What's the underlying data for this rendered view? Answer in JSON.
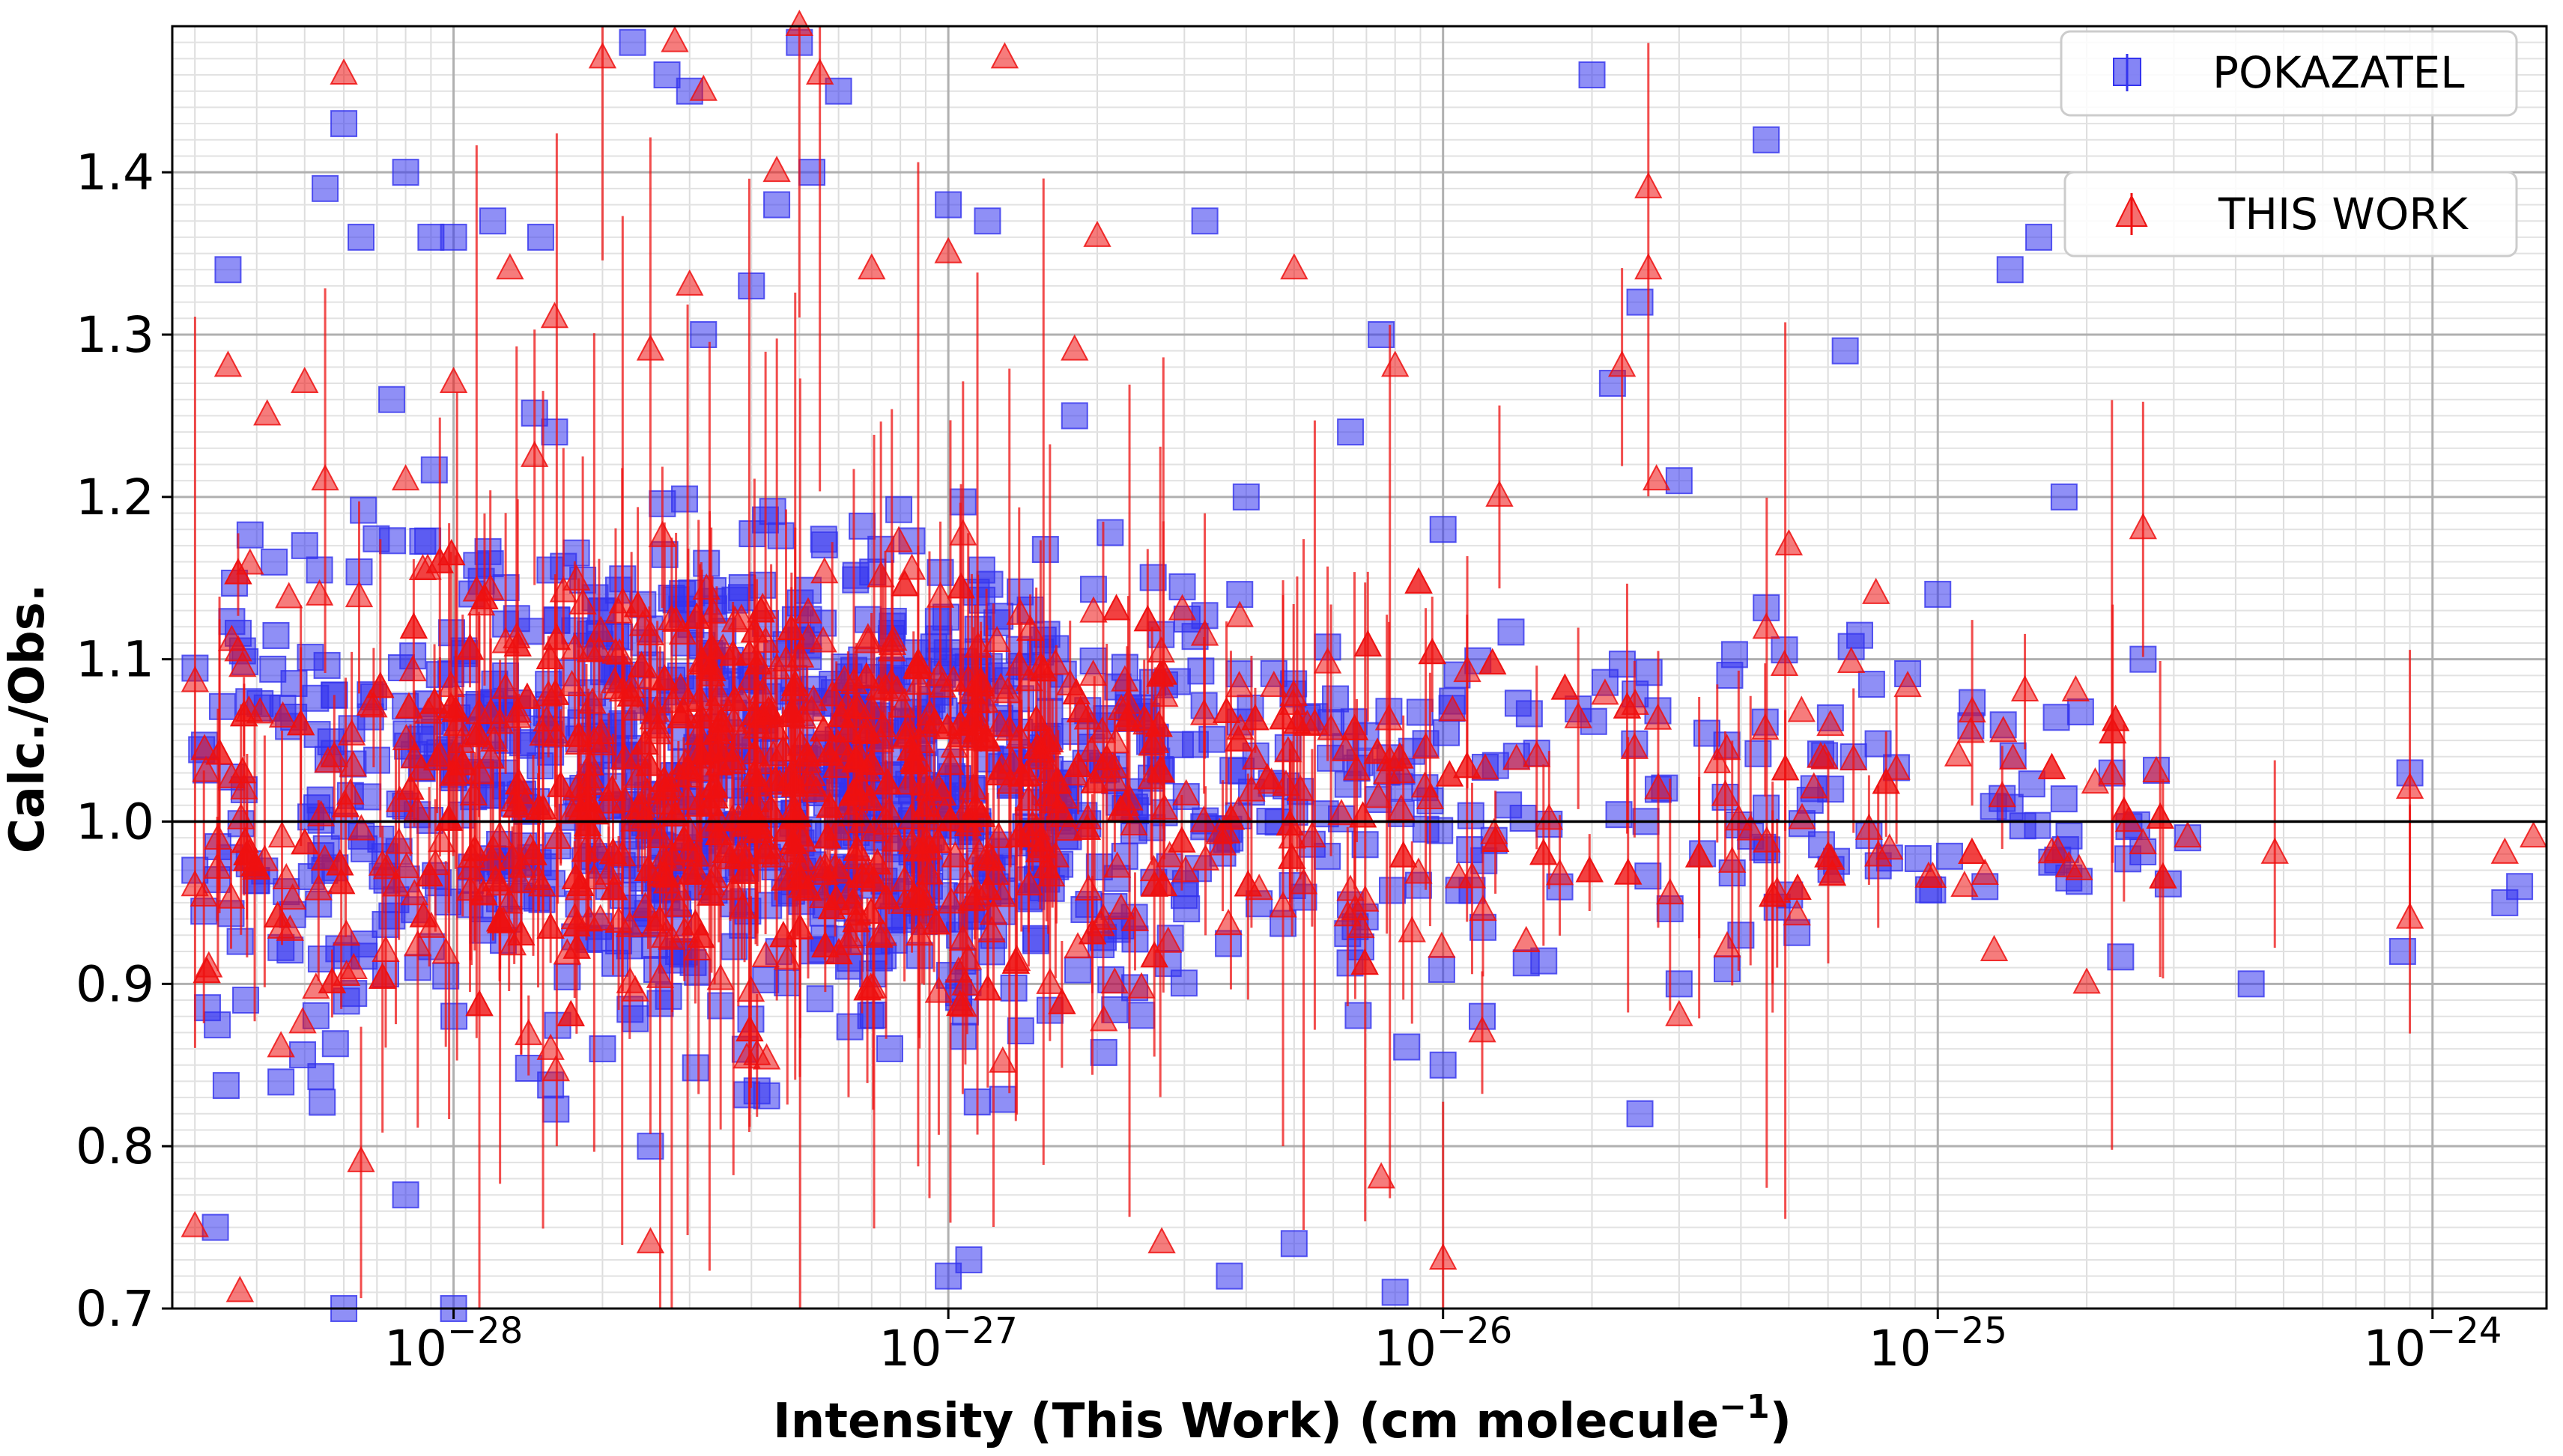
{
  "chart_data": {
    "type": "scatter",
    "title": "",
    "xlabel": "Intensity (This Work) (cm molecule",
    "xlabel_superscript": "−1",
    "xlabel_close": ")",
    "ylabel": "Calc./Obs.",
    "xscale": "log",
    "xlim": [
      2.7e-29,
      1.7e-24
    ],
    "ylim": [
      0.7,
      1.49
    ],
    "grid": true,
    "reference_line_y": 1.0,
    "y_ticks": [
      {
        "value": 0.7,
        "label": "0.7"
      },
      {
        "value": 0.8,
        "label": "0.8"
      },
      {
        "value": 0.9,
        "label": "0.9"
      },
      {
        "value": 1.0,
        "label": "1.0"
      },
      {
        "value": 1.1,
        "label": "1.1"
      },
      {
        "value": 1.2,
        "label": "1.2"
      },
      {
        "value": 1.3,
        "label": "1.3"
      },
      {
        "value": 1.4,
        "label": "1.4"
      }
    ],
    "x_ticks": [
      {
        "exponent": -28,
        "base": "10",
        "exp_label": "−28"
      },
      {
        "exponent": -27,
        "base": "10",
        "exp_label": "−27"
      },
      {
        "exponent": -26,
        "base": "10",
        "exp_label": "−26"
      },
      {
        "exponent": -25,
        "base": "10",
        "exp_label": "−25"
      },
      {
        "exponent": -24,
        "base": "10",
        "exp_label": "−24"
      }
    ],
    "legend": {
      "placement": "top-right",
      "entries": [
        {
          "name": "POKAZATEL",
          "marker": "square",
          "color": "#3333ee"
        },
        {
          "name": "THIS WORK",
          "marker": "triangle",
          "color": "#ee1111"
        }
      ]
    },
    "series": [
      {
        "name": "POKAZATEL",
        "marker": "square",
        "color": "#3333ee",
        "approx_points": 1200,
        "points": [
          [
            3e-29,
            0.97
          ],
          [
            3.3e-29,
            0.75
          ],
          [
            3.5e-29,
            1.34
          ],
          [
            3.8e-29,
            0.89
          ],
          [
            4.2e-29,
            1.07
          ],
          [
            5e-29,
            1.17
          ],
          [
            5.5e-29,
            1.39
          ],
          [
            6e-29,
            1.43
          ],
          [
            6.5e-29,
            1.36
          ],
          [
            7.5e-29,
            1.26
          ],
          [
            8e-29,
            1.4
          ],
          [
            9e-29,
            1.36
          ],
          [
            1e-28,
            1.36
          ],
          [
            1.2e-28,
            1.37
          ],
          [
            1.5e-28,
            1.36
          ],
          [
            1.6e-28,
            1.24
          ],
          [
            2.3e-28,
            1.48
          ],
          [
            2.7e-28,
            1.46
          ],
          [
            3e-28,
            1.45
          ],
          [
            3.2e-28,
            1.3
          ],
          [
            4e-28,
            1.33
          ],
          [
            4.5e-28,
            1.38
          ],
          [
            5e-28,
            1.48
          ],
          [
            5.3e-28,
            1.4
          ],
          [
            6e-28,
            1.45
          ],
          [
            1e-27,
            1.38
          ],
          [
            1.2e-27,
            1.37
          ],
          [
            1.8e-27,
            1.25
          ],
          [
            3.3e-27,
            1.37
          ],
          [
            4e-27,
            1.2
          ],
          [
            6.5e-27,
            1.24
          ],
          [
            7.5e-27,
            1.3
          ],
          [
            1e-26,
            1.18
          ],
          [
            2e-26,
            1.46
          ],
          [
            2.2e-26,
            1.27
          ],
          [
            2.5e-26,
            1.32
          ],
          [
            3e-26,
            1.21
          ],
          [
            4.5e-26,
            1.42
          ],
          [
            6.5e-26,
            1.29
          ],
          [
            1e-25,
            1.14
          ],
          [
            1.4e-25,
            1.34
          ],
          [
            1.6e-25,
            1.36
          ],
          [
            1.8e-25,
            1.2
          ],
          [
            2.6e-25,
            1.1
          ],
          [
            3.2e-25,
            0.99
          ],
          [
            4.3e-25,
            0.9
          ],
          [
            8.7e-25,
            0.92
          ],
          [
            9e-25,
            1.03
          ],
          [
            1.4e-24,
            0.95
          ],
          [
            1.5e-24,
            0.96
          ],
          [
            1e-27,
            0.72
          ],
          [
            1.1e-27,
            0.73
          ],
          [
            3.7e-27,
            0.72
          ],
          [
            5e-27,
            0.74
          ],
          [
            8e-27,
            0.71
          ],
          [
            2.5e-26,
            0.82
          ],
          [
            1e-26,
            0.85
          ],
          [
            1.2e-26,
            0.88
          ],
          [
            3e-26,
            0.9
          ],
          [
            4e-26,
            0.93
          ],
          [
            2.5e-28,
            0.8
          ],
          [
            2e-28,
            0.86
          ],
          [
            1e-28,
            0.7
          ],
          [
            8e-29,
            0.77
          ],
          [
            6e-29,
            0.7
          ]
        ]
      },
      {
        "name": "THIS WORK",
        "marker": "triangle",
        "color": "#ee1111",
        "approx_points": 1200,
        "points": [
          [
            3e-29,
            0.96
          ],
          [
            3.2e-29,
            0.91
          ],
          [
            3.5e-29,
            1.28
          ],
          [
            3.7e-29,
            0.71
          ],
          [
            4.2e-29,
            1.25
          ],
          [
            4.5e-29,
            0.99
          ],
          [
            5e-29,
            1.27
          ],
          [
            5.5e-29,
            1.21
          ],
          [
            6e-29,
            1.46
          ],
          [
            6.5e-29,
            0.79
          ],
          [
            8e-29,
            1.21
          ],
          [
            1e-28,
            1.27
          ],
          [
            1.3e-28,
            1.34
          ],
          [
            1.6e-28,
            1.31
          ],
          [
            2e-28,
            1.47
          ],
          [
            2.5e-28,
            1.29
          ],
          [
            2.8e-28,
            1.48
          ],
          [
            3e-28,
            1.33
          ],
          [
            3.2e-28,
            1.45
          ],
          [
            4.5e-28,
            1.4
          ],
          [
            5e-28,
            1.49
          ],
          [
            5.5e-28,
            1.46
          ],
          [
            7e-28,
            1.34
          ],
          [
            1e-27,
            1.35
          ],
          [
            1.3e-27,
            1.47
          ],
          [
            1.8e-27,
            1.29
          ],
          [
            2e-27,
            1.36
          ],
          [
            5e-27,
            1.34
          ],
          [
            8e-27,
            1.28
          ],
          [
            1.3e-26,
            1.2
          ],
          [
            2.3e-26,
            1.28
          ],
          [
            2.6e-26,
            1.39
          ],
          [
            2.6e-26,
            1.34
          ],
          [
            2.7e-26,
            1.21
          ],
          [
            5e-26,
            1.17
          ],
          [
            7.5e-26,
            1.14
          ],
          [
            1.1e-25,
            1.04
          ],
          [
            1.3e-25,
            0.92
          ],
          [
            1.5e-25,
            1.08
          ],
          [
            1.9e-25,
            1.08
          ],
          [
            2e-25,
            0.9
          ],
          [
            2.6e-25,
            1.18
          ],
          [
            3.2e-25,
            0.99
          ],
          [
            4.8e-25,
            0.98
          ],
          [
            9e-25,
            1.02
          ],
          [
            9e-25,
            0.94
          ],
          [
            1.4e-24,
            0.98
          ],
          [
            1.6e-24,
            0.99
          ],
          [
            1e-26,
            0.73
          ],
          [
            7.5e-27,
            0.78
          ],
          [
            2.7e-27,
            0.74
          ],
          [
            2.5e-28,
            0.74
          ],
          [
            3e-29,
            0.75
          ],
          [
            1.2e-26,
            0.87
          ],
          [
            3e-26,
            0.88
          ]
        ]
      }
    ]
  }
}
